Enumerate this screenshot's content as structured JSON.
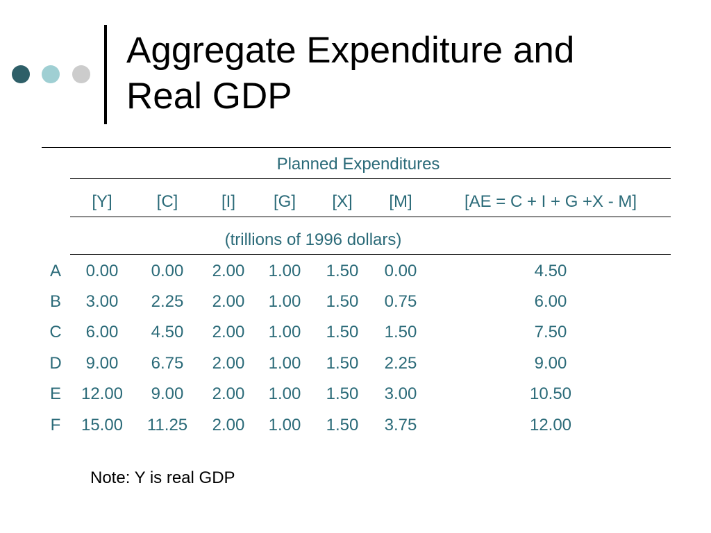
{
  "slide": {
    "title_lines": [
      "Aggregate Expenditure and",
      "Real GDP"
    ]
  },
  "table": {
    "group_header": "Planned Expenditures",
    "columns": [
      "[Y]",
      "[C]",
      "[I]",
      "[G]",
      "[X]",
      "[M]",
      "[AE = C + I + G +X - M]"
    ],
    "units": "(trillions of 1996 dollars)",
    "rows": [
      {
        "label": "A",
        "values": [
          "0.00",
          "0.00",
          "2.00",
          "1.00",
          "1.50",
          "0.00",
          "4.50"
        ]
      },
      {
        "label": "B",
        "values": [
          "3.00",
          "2.25",
          "2.00",
          "1.00",
          "1.50",
          "0.75",
          "6.00"
        ]
      },
      {
        "label": "C",
        "values": [
          "6.00",
          "4.50",
          "2.00",
          "1.00",
          "1.50",
          "1.50",
          "7.50"
        ]
      },
      {
        "label": "D",
        "values": [
          "9.00",
          "6.75",
          "2.00",
          "1.00",
          "1.50",
          "2.25",
          "9.00"
        ]
      },
      {
        "label": "E",
        "values": [
          "12.00",
          "9.00",
          "2.00",
          "1.00",
          "1.50",
          "3.00",
          "10.50"
        ]
      },
      {
        "label": "F",
        "values": [
          "15.00",
          "11.25",
          "2.00",
          "1.00",
          "1.50",
          "3.75",
          "12.00"
        ]
      }
    ]
  },
  "note": "Note: Y is real GDP",
  "colors": {
    "text_accent": "#2a6a78",
    "dot_dark": "#2e5f68",
    "dot_light": "#9fcfd3",
    "dot_gray": "#cccccc"
  }
}
